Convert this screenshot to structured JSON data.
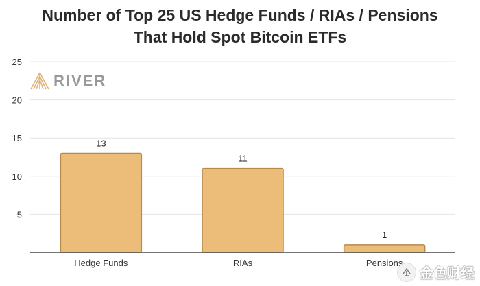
{
  "chart_data": {
    "type": "bar",
    "title": [
      "Number of Top 25 US Hedge Funds / RIAs / Pensions",
      "That Hold Spot Bitcoin ETFs"
    ],
    "categories": [
      "Hedge Funds",
      "RIAs",
      "Pensions"
    ],
    "values": [
      13,
      11,
      1
    ],
    "data_labels": [
      "13",
      "11",
      "1"
    ],
    "yticks": [
      5,
      10,
      15,
      20,
      25
    ],
    "ylim": [
      0,
      25
    ],
    "grid": true,
    "bar_color": "#ebbd79",
    "bar_stroke": "#b58a4c"
  },
  "branding": {
    "logo_text": "RIVER",
    "watermark_text": "金色财经"
  },
  "colors": {
    "grid": "#e4e4e4",
    "axis": "#444444",
    "logo": "#9a9a9a"
  }
}
